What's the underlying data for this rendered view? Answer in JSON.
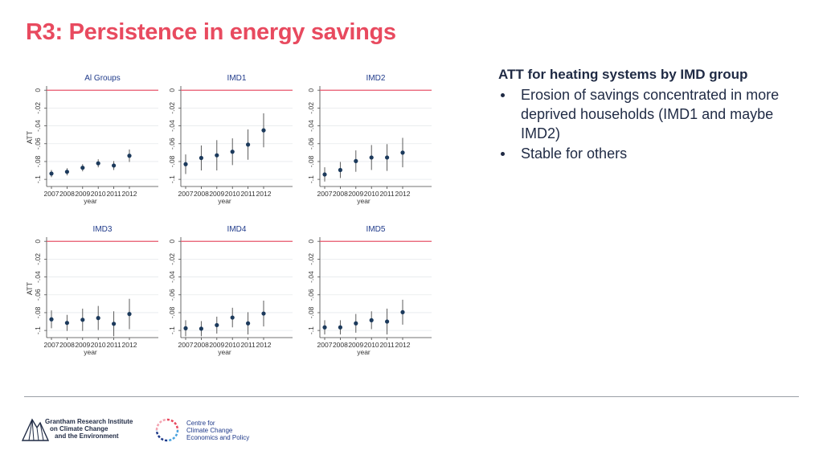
{
  "slide": {
    "title": "R3: Persistence in energy savings",
    "bullets_heading": "ATT for heating systems by IMD group",
    "bullets": [
      "Erosion of savings concentrated in more deprived households (IMD1 and maybe IMD2)",
      "Stable for others"
    ]
  },
  "footer": {
    "logo1_lines": [
      "Grantham Research Institute",
      "on Climate Change",
      "and the Environment"
    ],
    "logo2_lines": [
      "Centre for",
      "Climate Change",
      "Economics and Policy"
    ]
  },
  "colors": {
    "title": "#e84a5f",
    "refline": "#e8566b",
    "marker": "#1c3a5c",
    "text": "#1f2a44"
  },
  "chart_data": [
    {
      "type": "scatter",
      "title": "Al Groups",
      "xlabel": "year",
      "ylabel": "ATT",
      "x": [
        2007,
        2008,
        2009,
        2010,
        2011,
        2012
      ],
      "yticks": [
        "0",
        "-.02",
        "-.04",
        "-.06",
        "-.08",
        "-.1"
      ],
      "ylim": [
        -0.108,
        0.002
      ],
      "values": [
        -0.0935,
        -0.0915,
        -0.087,
        -0.082,
        -0.0845,
        -0.0735
      ],
      "ci_low": [
        -0.0975,
        -0.0955,
        -0.091,
        -0.0865,
        -0.0895,
        -0.0805
      ],
      "ci_high": [
        -0.0895,
        -0.0875,
        -0.083,
        -0.0775,
        -0.0795,
        -0.0665
      ],
      "refline": 0
    },
    {
      "type": "scatter",
      "title": "IMD1",
      "xlabel": "year",
      "ylabel": "",
      "x": [
        2007,
        2008,
        2009,
        2010,
        2011,
        2012
      ],
      "yticks": [
        "0",
        "-.02",
        "-.04",
        "-.06",
        "-.08",
        "-.1"
      ],
      "ylim": [
        -0.108,
        0.002
      ],
      "values": [
        -0.083,
        -0.076,
        -0.073,
        -0.069,
        -0.061,
        -0.045
      ],
      "ci_low": [
        -0.094,
        -0.09,
        -0.09,
        -0.084,
        -0.078,
        -0.064
      ],
      "ci_high": [
        -0.072,
        -0.062,
        -0.056,
        -0.054,
        -0.044,
        -0.026
      ],
      "refline": 0
    },
    {
      "type": "scatter",
      "title": "IMD2",
      "xlabel": "year",
      "ylabel": "",
      "x": [
        2007,
        2008,
        2009,
        2010,
        2011,
        2012
      ],
      "yticks": [
        "0",
        "-.02",
        "-.04",
        "-.06",
        "-.08",
        "-.1"
      ],
      "ylim": [
        -0.108,
        0.002
      ],
      "values": [
        -0.0945,
        -0.0895,
        -0.0795,
        -0.0755,
        -0.0755,
        -0.07
      ],
      "ci_low": [
        -0.1025,
        -0.0985,
        -0.0915,
        -0.0895,
        -0.0905,
        -0.0865
      ],
      "ci_high": [
        -0.0865,
        -0.0805,
        -0.0675,
        -0.0615,
        -0.0605,
        -0.0535
      ],
      "refline": 0
    },
    {
      "type": "scatter",
      "title": "IMD3",
      "xlabel": "year",
      "ylabel": "ATT",
      "x": [
        2007,
        2008,
        2009,
        2010,
        2011,
        2012
      ],
      "yticks": [
        "0",
        "-.02",
        "-.04",
        "-.06",
        "-.08",
        "-.1"
      ],
      "ylim": [
        -0.108,
        0.002
      ],
      "values": [
        -0.0875,
        -0.0915,
        -0.088,
        -0.086,
        -0.0925,
        -0.0815
      ],
      "ci_low": [
        -0.0975,
        -0.1005,
        -0.1005,
        -0.0995,
        -0.1065,
        -0.0985
      ],
      "ci_high": [
        -0.0775,
        -0.0825,
        -0.0755,
        -0.0725,
        -0.0785,
        -0.0645
      ],
      "refline": 0
    },
    {
      "type": "scatter",
      "title": "IMD4",
      "xlabel": "year",
      "ylabel": "",
      "x": [
        2007,
        2008,
        2009,
        2010,
        2011,
        2012
      ],
      "yticks": [
        "0",
        "-.02",
        "-.04",
        "-.06",
        "-.08",
        "-.1"
      ],
      "ylim": [
        -0.108,
        0.002
      ],
      "values": [
        -0.0975,
        -0.098,
        -0.094,
        -0.0855,
        -0.092,
        -0.081
      ],
      "ci_low": [
        -0.1065,
        -0.1065,
        -0.1035,
        -0.0965,
        -0.1045,
        -0.0955
      ],
      "ci_high": [
        -0.0885,
        -0.0895,
        -0.0845,
        -0.0745,
        -0.0795,
        -0.0665
      ],
      "refline": 0
    },
    {
      "type": "scatter",
      "title": "IMD5",
      "xlabel": "year",
      "ylabel": "",
      "x": [
        2007,
        2008,
        2009,
        2010,
        2011,
        2012
      ],
      "yticks": [
        "0",
        "-.02",
        "-.04",
        "-.06",
        "-.08",
        "-.1"
      ],
      "ylim": [
        -0.108,
        0.002
      ],
      "values": [
        -0.0965,
        -0.0965,
        -0.092,
        -0.0885,
        -0.09,
        -0.0795
      ],
      "ci_low": [
        -0.1045,
        -0.1045,
        -0.1025,
        -0.0985,
        -0.1045,
        -0.0935
      ],
      "ci_high": [
        -0.0885,
        -0.0885,
        -0.0815,
        -0.0785,
        -0.0755,
        -0.0655
      ],
      "refline": 0
    }
  ]
}
